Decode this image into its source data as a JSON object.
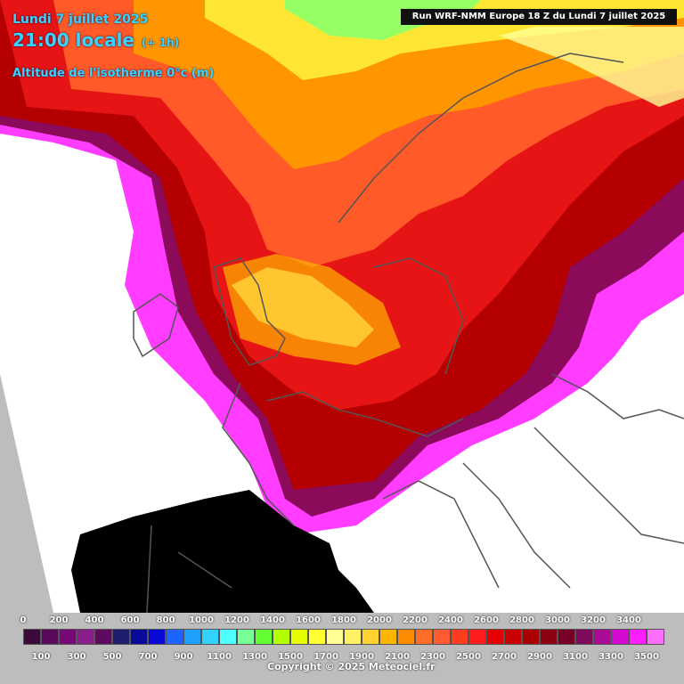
{
  "header": {
    "date": "Lundi 7 juillet 2025",
    "time": "21:00 locale",
    "lead": "(+ 1h)",
    "parameter": "Altitude de l'isotherme 0°c (m)",
    "run": "Run WRF-NMM Europe 18 Z du Lundi 7 juillet 2025"
  },
  "legend": {
    "top_labels": [
      "0",
      "200",
      "400",
      "600",
      "800",
      "1000",
      "1200",
      "1400",
      "1600",
      "1800",
      "2000",
      "2200",
      "2400",
      "2600",
      "2800",
      "3000",
      "3200",
      "3400"
    ],
    "bottom_labels": [
      "100",
      "300",
      "500",
      "700",
      "900",
      "1100",
      "1300",
      "1500",
      "1700",
      "1900",
      "2100",
      "2300",
      "2500",
      "2700",
      "2900",
      "3100",
      "3300",
      "3500"
    ],
    "colors": [
      "#3b0a3b",
      "#5a0a5a",
      "#780a78",
      "#8a1e8a",
      "#5e0a5e",
      "#1e1e6e",
      "#0a0a9a",
      "#0a0ad8",
      "#1e64ff",
      "#1ea0ff",
      "#32d2ff",
      "#50ffff",
      "#78ff96",
      "#64ff32",
      "#b4ff00",
      "#e6ff00",
      "#ffff32",
      "#ffff96",
      "#fff064",
      "#ffd232",
      "#ffb400",
      "#ff8c00",
      "#ff6e28",
      "#ff5a32",
      "#ff3c1e",
      "#ff1e1e",
      "#e60000",
      "#c80000",
      "#aa0000",
      "#8c0014",
      "#780028",
      "#7d0a5a",
      "#aa0a96",
      "#d20ad2",
      "#ff1eff",
      "#ff6eff"
    ]
  },
  "copyright": "Copyright © 2025 Meteociel.fr",
  "colors": {
    "title": "#39d3ff",
    "land_white": "#ffffff",
    "africa": "#000000",
    "border_lines": "#555555"
  }
}
